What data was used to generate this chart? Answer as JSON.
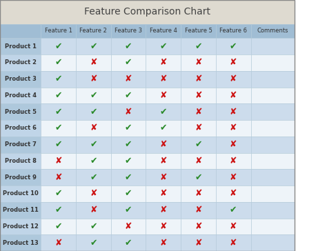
{
  "title": "Feature Comparison Chart",
  "columns": [
    "",
    "Feature 1",
    "Feature 2",
    "Feature 3",
    "Feature 4",
    "Feature 5",
    "Feature 6",
    "Comments"
  ],
  "rows": [
    "Product 1",
    "Product 2",
    "Product 3",
    "Product 4",
    "Product 5",
    "Product 6",
    "Product 7",
    "Product 8",
    "Product 9",
    "Product 10",
    "Product 11",
    "Product 12",
    "Product 13"
  ],
  "data": [
    [
      1,
      1,
      1,
      1,
      1,
      1
    ],
    [
      1,
      0,
      1,
      0,
      0,
      0
    ],
    [
      1,
      0,
      0,
      0,
      0,
      0
    ],
    [
      1,
      1,
      1,
      0,
      0,
      0
    ],
    [
      1,
      1,
      0,
      1,
      0,
      0
    ],
    [
      1,
      0,
      1,
      1,
      0,
      0
    ],
    [
      1,
      1,
      1,
      0,
      1,
      0
    ],
    [
      0,
      1,
      1,
      0,
      0,
      0
    ],
    [
      0,
      1,
      1,
      0,
      1,
      0
    ],
    [
      1,
      0,
      1,
      0,
      0,
      0
    ],
    [
      1,
      0,
      1,
      0,
      0,
      1
    ],
    [
      1,
      1,
      0,
      0,
      0,
      0
    ],
    [
      0,
      1,
      1,
      0,
      0,
      0
    ]
  ],
  "title_bg": "#dedad0",
  "header_bg": "#a0bdd4",
  "row_bg_light": "#ccdcec",
  "row_bg_white": "#eef4f9",
  "first_col_bg_light": "#aec8dc",
  "first_col_bg_white": "#c0d5e8",
  "check_color": "#2a8a2a",
  "cross_color": "#cc1111",
  "grid_color": "#b0c8d8",
  "title_fontsize": 10,
  "cell_fontsize": 6,
  "header_fontsize": 6,
  "symbol_fontsize": 9
}
